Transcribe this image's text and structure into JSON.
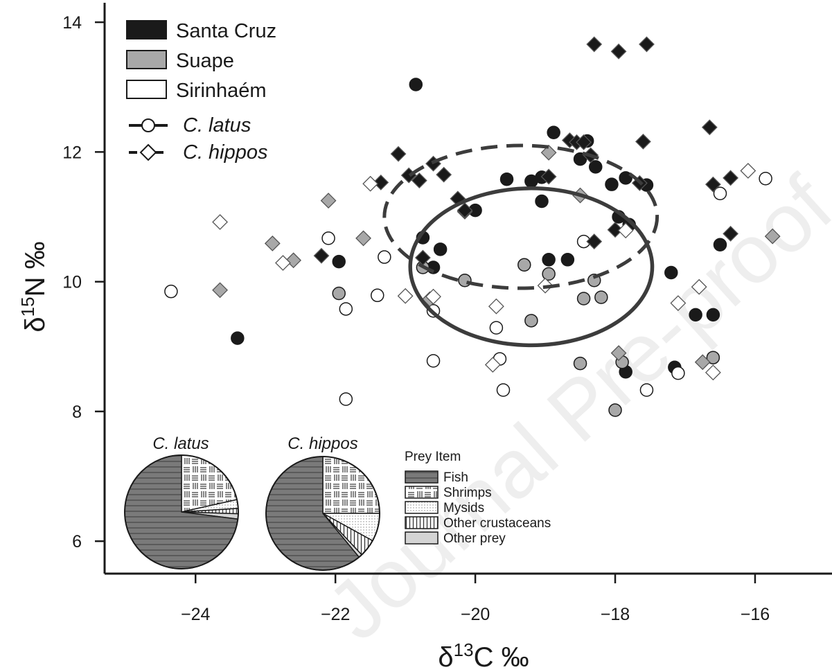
{
  "watermark": "Journal Pre-proof",
  "chart_data": {
    "type": "scatter",
    "xlabel": "δ13C ‰",
    "ylabel": "δ15N ‰",
    "xlim": [
      -25.3,
      -14.9
    ],
    "ylim": [
      5.5,
      14.3
    ],
    "xticks": [
      -24,
      -22,
      -20,
      -18,
      -16
    ],
    "xtick_labels": [
      "−24",
      "−22",
      "−20",
      "−18",
      "−16"
    ],
    "yticks": [
      6,
      8,
      10,
      12,
      14
    ],
    "ytick_labels": [
      "6",
      "8",
      "10",
      "12",
      "14"
    ],
    "grid": false,
    "legend_position": "top-left",
    "sites": [
      {
        "name": "Santa Cruz",
        "color": "#1a1a1a"
      },
      {
        "name": "Suape",
        "color": "#a8a8a8"
      },
      {
        "name": "Sirinhaém",
        "color": "#ffffff"
      }
    ],
    "species": [
      {
        "name": "C. latus",
        "marker": "circle",
        "ellipse_style": "solid"
      },
      {
        "name": "C. hippos",
        "marker": "diamond",
        "ellipse_style": "dashed"
      }
    ],
    "ellipses": [
      {
        "species": "C. latus",
        "cx": -19.2,
        "cy": 10.23,
        "rx": 1.73,
        "ry": 1.21
      },
      {
        "species": "C. hippos",
        "cx": -19.35,
        "cy": 11.0,
        "rx": 1.95,
        "ry": 1.1
      }
    ],
    "series": [
      {
        "species": "C. latus",
        "site": "Santa Cruz",
        "points": [
          [
            -23.4,
            9.13
          ],
          [
            -21.95,
            10.31
          ],
          [
            -20.85,
            13.04
          ],
          [
            -20.75,
            10.68
          ],
          [
            -20.6,
            10.22
          ],
          [
            -20.5,
            10.5
          ],
          [
            -20.0,
            11.1
          ],
          [
            -19.55,
            11.58
          ],
          [
            -19.2,
            11.55
          ],
          [
            -19.05,
            11.61
          ],
          [
            -19.05,
            11.24
          ],
          [
            -18.95,
            10.34
          ],
          [
            -18.88,
            12.3
          ],
          [
            -18.68,
            10.34
          ],
          [
            -18.5,
            11.89
          ],
          [
            -18.4,
            12.17
          ],
          [
            -18.28,
            11.77
          ],
          [
            -18.05,
            11.5
          ],
          [
            -17.95,
            11.0
          ],
          [
            -17.85,
            11.6
          ],
          [
            -17.8,
            10.88
          ],
          [
            -17.55,
            11.49
          ],
          [
            -17.2,
            10.14
          ],
          [
            -17.15,
            8.68
          ],
          [
            -16.85,
            9.49
          ],
          [
            -16.6,
            9.49
          ],
          [
            -16.5,
            10.57
          ],
          [
            -17.85,
            8.61
          ]
        ]
      },
      {
        "species": "C. latus",
        "site": "Suape",
        "points": [
          [
            -21.95,
            9.82
          ],
          [
            -20.75,
            10.22
          ],
          [
            -20.15,
            10.02
          ],
          [
            -19.3,
            10.26
          ],
          [
            -19.2,
            9.4
          ],
          [
            -18.95,
            10.12
          ],
          [
            -18.5,
            8.74
          ],
          [
            -18.45,
            9.74
          ],
          [
            -18.3,
            10.02
          ],
          [
            -18.2,
            9.76
          ],
          [
            -18.0,
            8.02
          ],
          [
            -17.9,
            8.76
          ],
          [
            -16.6,
            8.83
          ]
        ]
      },
      {
        "species": "C. latus",
        "site": "Sirinhaém",
        "points": [
          [
            -24.35,
            9.85
          ],
          [
            -22.1,
            10.67
          ],
          [
            -21.85,
            9.58
          ],
          [
            -21.85,
            8.19
          ],
          [
            -21.4,
            9.79
          ],
          [
            -21.3,
            10.38
          ],
          [
            -20.6,
            8.78
          ],
          [
            -20.6,
            9.55
          ],
          [
            -19.7,
            9.29
          ],
          [
            -19.65,
            8.81
          ],
          [
            -19.6,
            8.33
          ],
          [
            -18.45,
            10.62
          ],
          [
            -17.55,
            8.33
          ],
          [
            -17.1,
            8.59
          ],
          [
            -16.5,
            11.36
          ],
          [
            -15.85,
            11.59
          ]
        ]
      },
      {
        "species": "C. hippos",
        "site": "Santa Cruz",
        "points": [
          [
            -22.2,
            10.4
          ],
          [
            -21.35,
            11.53
          ],
          [
            -21.1,
            11.97
          ],
          [
            -20.95,
            11.64
          ],
          [
            -20.8,
            11.56
          ],
          [
            -20.75,
            10.37
          ],
          [
            -20.6,
            11.82
          ],
          [
            -20.45,
            11.65
          ],
          [
            -20.25,
            11.28
          ],
          [
            -20.15,
            11.08
          ],
          [
            -20.15,
            11.1
          ],
          [
            -18.95,
            11.62
          ],
          [
            -18.65,
            12.18
          ],
          [
            -18.55,
            12.15
          ],
          [
            -18.45,
            12.15
          ],
          [
            -18.35,
            11.95
          ],
          [
            -18.3,
            10.62
          ],
          [
            -18.3,
            13.66
          ],
          [
            -17.95,
            13.55
          ],
          [
            -17.65,
            11.52
          ],
          [
            -17.6,
            12.16
          ],
          [
            -17.55,
            13.66
          ],
          [
            -16.65,
            12.38
          ],
          [
            -16.6,
            11.5
          ],
          [
            -16.35,
            11.6
          ],
          [
            -16.35,
            10.74
          ],
          [
            -18.0,
            10.8
          ]
        ]
      },
      {
        "species": "C. hippos",
        "site": "Suape",
        "points": [
          [
            -23.65,
            9.87
          ],
          [
            -22.9,
            10.59
          ],
          [
            -22.6,
            10.33
          ],
          [
            -22.1,
            11.25
          ],
          [
            -21.6,
            10.67
          ],
          [
            -20.65,
            9.73
          ],
          [
            -18.95,
            11.99
          ],
          [
            -18.5,
            11.33
          ],
          [
            -17.95,
            8.9
          ],
          [
            -16.75,
            8.76
          ],
          [
            -15.75,
            10.7
          ]
        ]
      },
      {
        "species": "C. hippos",
        "site": "Sirinhaém",
        "points": [
          [
            -23.65,
            10.92
          ],
          [
            -22.75,
            10.29
          ],
          [
            -21.5,
            11.51
          ],
          [
            -21.0,
            9.78
          ],
          [
            -20.6,
            9.77
          ],
          [
            -19.75,
            8.72
          ],
          [
            -19.7,
            9.62
          ],
          [
            -19.0,
            9.94
          ],
          [
            -17.85,
            10.79
          ],
          [
            -17.1,
            9.67
          ],
          [
            -16.8,
            9.92
          ],
          [
            -16.6,
            8.6
          ],
          [
            -16.1,
            11.71
          ]
        ]
      }
    ],
    "pies": [
      {
        "title": "C. latus",
        "slices": [
          {
            "item": "Fish",
            "value": 73.0
          },
          {
            "item": "Shrimps",
            "value": 21.5
          },
          {
            "item": "Mysids",
            "value": 2.5
          },
          {
            "item": "Other crustaceans",
            "value": 1.5
          },
          {
            "item": "Other prey",
            "value": 1.5
          }
        ]
      },
      {
        "title": "C. hippos",
        "slices": [
          {
            "item": "Fish",
            "value": 61.0
          },
          {
            "item": "Shrimps",
            "value": 25.0
          },
          {
            "item": "Mysids",
            "value": 8.0
          },
          {
            "item": "Other crustaceans",
            "value": 5.0
          },
          {
            "item": "Other prey",
            "value": 1.0
          }
        ]
      }
    ],
    "prey_legend": {
      "title": "Prey Item",
      "items": [
        {
          "name": "Fish",
          "fill": "#7a7a7a",
          "pattern": "horizontal-stripes"
        },
        {
          "name": "Shrimps",
          "fill": "#ffffff",
          "pattern": "mixed-lines"
        },
        {
          "name": "Mysids",
          "fill": "#ffffff",
          "pattern": "dots"
        },
        {
          "name": "Other crustaceans",
          "fill": "#ffffff",
          "pattern": "vertical-stripes"
        },
        {
          "name": "Other prey",
          "fill": "#d4d4d4",
          "pattern": "none"
        }
      ]
    }
  }
}
